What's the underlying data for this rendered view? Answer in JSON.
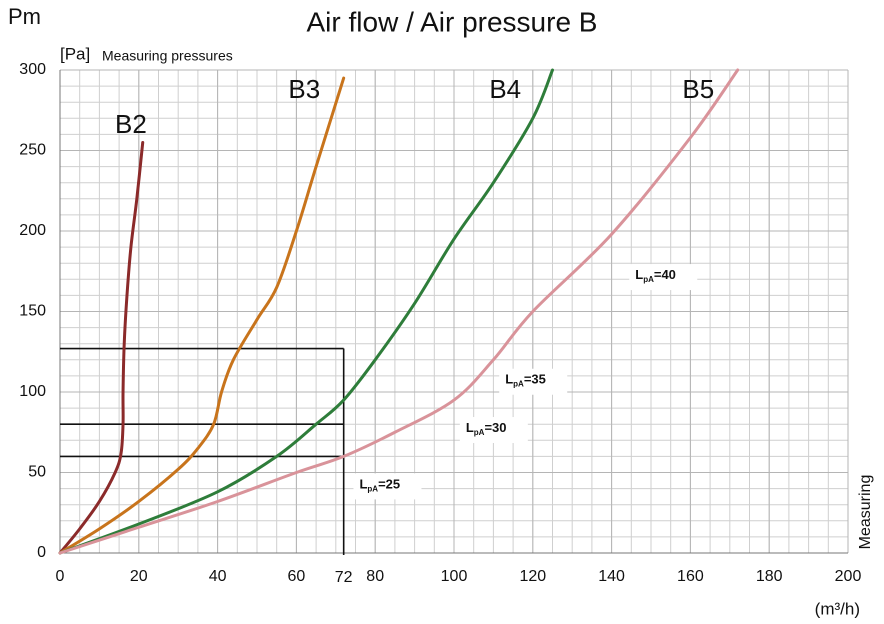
{
  "chart_data": {
    "type": "line",
    "title": "Air flow / Air pressure B",
    "y_symbol": "Pm",
    "y_unit": "[Pa]",
    "y_label": "Measuring pressures",
    "x_unit": "(m³/h)",
    "side_label": "Measuring",
    "xlim": [
      0,
      200
    ],
    "ylim": [
      0,
      300
    ],
    "xticks": [
      0,
      20,
      40,
      60,
      80,
      100,
      120,
      140,
      160,
      180,
      200
    ],
    "yticks": [
      0,
      50,
      100,
      150,
      200,
      250,
      300
    ],
    "grid": true,
    "marker_x": 72,
    "marker_y": [
      127,
      80,
      60
    ],
    "noise_labels": [
      {
        "symbol": "L",
        "subscript": "pA",
        "text": "=25"
      },
      {
        "symbol": "L",
        "subscript": "pA",
        "text": "=30"
      },
      {
        "symbol": "L",
        "subscript": "pA",
        "text": "=35"
      },
      {
        "symbol": "L",
        "subscript": "pA",
        "text": "=40"
      }
    ],
    "series": [
      {
        "name": "B2",
        "color": "#8b2a2a",
        "x": [
          0,
          5,
          10,
          14,
          15.5,
          16,
          16,
          16.3,
          17,
          18,
          19.5,
          21
        ],
        "values": [
          0,
          15,
          32,
          50,
          62,
          80,
          100,
          130,
          160,
          190,
          220,
          255
        ]
      },
      {
        "name": "B3",
        "color": "#c8741c",
        "x": [
          0,
          10,
          20,
          30,
          35,
          39,
          41,
          44,
          50,
          55,
          60,
          65,
          72
        ],
        "values": [
          0,
          15,
          32,
          52,
          65,
          80,
          100,
          120,
          145,
          165,
          200,
          240,
          295
        ]
      },
      {
        "name": "B4",
        "color": "#2e7d3a",
        "x": [
          0,
          20,
          40,
          55,
          65,
          72,
          80,
          90,
          100,
          110,
          120,
          125
        ],
        "values": [
          0,
          18,
          38,
          60,
          80,
          95,
          120,
          155,
          195,
          230,
          270,
          300
        ]
      },
      {
        "name": "B5",
        "color": "#d9939a",
        "x": [
          0,
          20,
          40,
          60,
          72,
          85,
          100,
          110,
          120,
          140,
          160,
          172
        ],
        "values": [
          0,
          16,
          32,
          50,
          60,
          75,
          95,
          120,
          150,
          198,
          258,
          300
        ]
      }
    ]
  }
}
